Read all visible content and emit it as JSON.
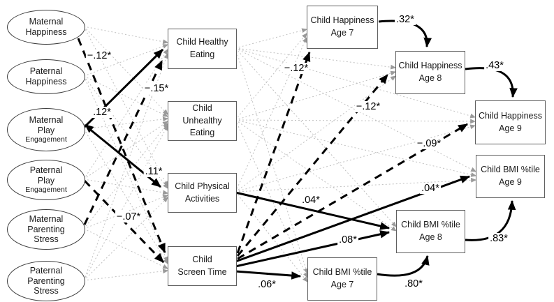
{
  "figure": {
    "latent_factors": {
      "maternal_happiness": {
        "title": "Maternal\nHappiness"
      },
      "paternal_happiness": {
        "title": "Paternal\nHappiness"
      },
      "maternal_play": {
        "title": "Maternal\nPlay",
        "sub": "Engagement"
      },
      "paternal_play": {
        "title": "Paternal\nPlay",
        "sub": "Engagement"
      },
      "maternal_stress": {
        "title": "Maternal\nParenting\nStress"
      },
      "paternal_stress": {
        "title": "Paternal\nParenting\nStress"
      }
    },
    "behaviors": {
      "healthy_eating": "Child Healthy\nEating",
      "unhealthy_eating": "Child\nUnhealthy\nEating",
      "physical_activities": "Child Physical\nActivities",
      "screen_time": "Child\nScreen Time"
    },
    "outcomes": {
      "happiness_age7": "Child Happiness\nAge 7",
      "happiness_age8": "Child Happiness\nAge 8",
      "happiness_age9": "Child Happiness\nAge 9",
      "bmi_age9": "Child BMI %tile\nAge 9",
      "bmi_age8": "Child BMI %tile\nAge 8",
      "bmi_age7": "Child BMI %tile\nAge 7"
    },
    "paths": [
      {
        "from": "Maternal Happiness",
        "to": "Child Screen Time",
        "coefficient": "−.12*",
        "style": "dashed"
      },
      {
        "from": "Maternal Parenting Stress",
        "to": "Child Healthy Eating",
        "coefficient": "−.15*",
        "style": "dashed"
      },
      {
        "from": "Maternal Play Engagement",
        "to": "Child Healthy Eating",
        "coefficient": ".12*",
        "style": "solid"
      },
      {
        "from": "Maternal Play Engagement",
        "to": "Child Physical Activities",
        "coefficient": ".11*",
        "style": "solid-bidirectional"
      },
      {
        "from": "Paternal Play Engagement",
        "to": "Child Screen Time",
        "coefficient": "−.07*",
        "style": "dashed"
      },
      {
        "from": "Child Screen Time",
        "to": "Child Happiness Age 7",
        "coefficient": "−.12*",
        "style": "dashed"
      },
      {
        "from": "Child Screen Time",
        "to": "Child Happiness Age 8",
        "coefficient": "−.12*",
        "style": "dashed"
      },
      {
        "from": "Child Screen Time",
        "to": "Child Happiness Age 9",
        "coefficient": "−.09*",
        "style": "dashed"
      },
      {
        "from": "Child Physical Activities",
        "to": "Child BMI %tile Age 8",
        "coefficient": ".04*",
        "style": "solid"
      },
      {
        "from": "Child Screen Time",
        "to": "Child BMI %tile Age 9",
        "coefficient": ".04*",
        "style": "solid"
      },
      {
        "from": "Child Screen Time",
        "to": "Child BMI %tile Age 8",
        "coefficient": ".08*",
        "style": "solid"
      },
      {
        "from": "Child Screen Time",
        "to": "Child BMI %tile Age 7",
        "coefficient": ".06*",
        "style": "solid"
      },
      {
        "from": "Child Happiness Age 7",
        "to": "Child Happiness Age 8",
        "coefficient": ".32*",
        "style": "curved"
      },
      {
        "from": "Child Happiness Age 8",
        "to": "Child Happiness Age 9",
        "coefficient": ".43*",
        "style": "curved"
      },
      {
        "from": "Child BMI %tile Age 7",
        "to": "Child BMI %tile Age 8",
        "coefficient": ".80*",
        "style": "curved"
      },
      {
        "from": "Child BMI %tile Age 8",
        "to": "Child BMI %tile Age 9",
        "coefficient": ".83*",
        "style": "curved"
      }
    ]
  }
}
